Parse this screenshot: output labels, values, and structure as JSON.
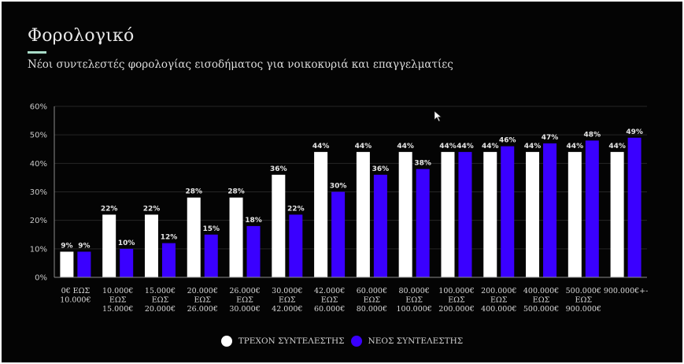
{
  "header": {
    "title": "Φορολογικό",
    "subtitle": "Νέοι συντελεστές φορολογίας εισοδήματος για νοικοκυριά και επαγγελματίες"
  },
  "colors": {
    "current": "#ffffff",
    "new": "#3a00ff",
    "accent": "#a9dcc8"
  },
  "chart_data": {
    "type": "bar",
    "title": "Νέοι συντελεστές φορολογίας εισοδήματος για νοικοκυριά και επαγγελματίες",
    "xlabel": "",
    "ylabel": "",
    "ylim": [
      0,
      60
    ],
    "yticks": [
      "0%",
      "10%",
      "20%",
      "30%",
      "40%",
      "50%",
      "60%"
    ],
    "ytick_values": [
      0,
      10,
      20,
      30,
      40,
      50,
      60
    ],
    "grid": true,
    "legend_position": "bottom",
    "categories": [
      [
        "0€ ΕΩΣ",
        "10.000€"
      ],
      [
        "10.000€",
        "ΕΩΣ",
        "15.000€"
      ],
      [
        "15.000€",
        "ΕΩΣ",
        "20.000€"
      ],
      [
        "20.000€",
        "ΕΩΣ",
        "26.000€"
      ],
      [
        "26.000€",
        "ΕΩΣ",
        "30.000€"
      ],
      [
        "30.000€",
        "ΕΩΣ",
        "42.000€"
      ],
      [
        "42.000€",
        "ΕΩΣ",
        "60.000€"
      ],
      [
        "60.000€",
        "ΕΩΣ",
        "80.000€"
      ],
      [
        "80.000€",
        "ΕΩΣ",
        "100.000€"
      ],
      [
        "100.000€",
        "ΕΩΣ",
        "200.000€"
      ],
      [
        "200.000€",
        "ΕΩΣ",
        "400.000€"
      ],
      [
        "400.000€",
        "ΕΩΣ",
        "500.000€"
      ],
      [
        "500.000€",
        "ΕΩΣ",
        "900.000€"
      ],
      [
        "900.000€+-"
      ]
    ],
    "series": [
      {
        "name": "ΤΡΕΧΟΝ ΣΥΝΤΕΛΕΣΤΗΣ",
        "color": "#ffffff",
        "values": [
          9,
          22,
          22,
          28,
          28,
          36,
          44,
          44,
          44,
          44,
          44,
          44,
          44,
          44
        ],
        "labels": [
          "9%",
          "22%",
          "22%",
          "28%",
          "28%",
          "36%",
          "44%",
          "44%",
          "44%",
          "44%",
          "44%",
          "44%",
          "44%",
          "44%"
        ]
      },
      {
        "name": "ΝΕΟΣ ΣΥΝΤΕΛΕΣΤΗΣ",
        "color": "#3a00ff",
        "values": [
          9,
          10,
          12,
          15,
          18,
          22,
          30,
          36,
          38,
          44,
          46,
          47,
          48,
          49
        ],
        "labels": [
          "9%",
          "10%",
          "12%",
          "15%",
          "18%",
          "22%",
          "30%",
          "36%",
          "38%",
          "44%",
          "46%",
          "47%",
          "48%",
          "49%"
        ]
      }
    ]
  },
  "legend": {
    "items": [
      {
        "label": "ΤΡΕΧΟΝ ΣΥΝΤΕΛΕΣΤΗΣ",
        "icon": "circle-icon"
      },
      {
        "label": "ΝΕΟΣ ΣΥΝΤΕΛΕΣΤΗΣ",
        "icon": "circle-icon"
      }
    ]
  },
  "cursor": {
    "icon": "mouse-pointer-icon"
  }
}
